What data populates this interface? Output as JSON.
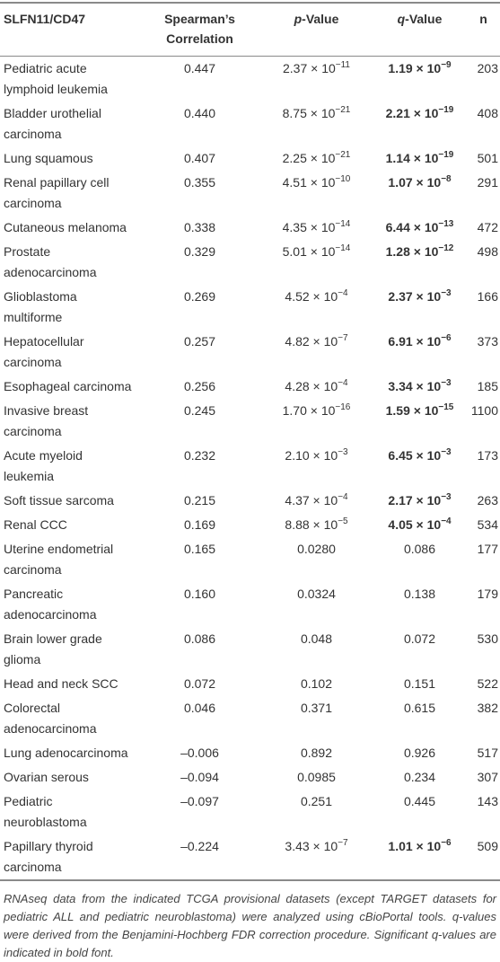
{
  "table": {
    "header": [
      "SLFN11/CD47",
      "Spearman’s Correlation",
      [
        "p",
        "-Value"
      ],
      [
        "q",
        "-Value"
      ],
      "n"
    ],
    "rows": [
      {
        "name": "Pediatric acute lymphoid leukemia",
        "correlation": "0.447",
        "p": [
          "2.37 × 10",
          "−11"
        ],
        "q": [
          "1.19 × 10",
          "−9"
        ],
        "n": 203,
        "q_bold": true
      },
      {
        "name": "Bladder urothelial carcinoma",
        "correlation": "0.440",
        "p": [
          "8.75 × 10",
          "−21"
        ],
        "q": [
          "2.21 × 10",
          "−19"
        ],
        "n": 408,
        "q_bold": true
      },
      {
        "name": "Lung squamous",
        "correlation": "0.407",
        "p": [
          "2.25 × 10",
          "−21"
        ],
        "q": [
          "1.14 × 10",
          "−19"
        ],
        "n": 501,
        "q_bold": true
      },
      {
        "name": "Renal papillary cell carcinoma",
        "correlation": "0.355",
        "p": [
          "4.51 × 10",
          "−10"
        ],
        "q": [
          "1.07 × 10",
          "−8"
        ],
        "n": 291,
        "q_bold": true
      },
      {
        "name": "Cutaneous melanoma",
        "correlation": "0.338",
        "p": [
          "4.35 × 10",
          "−14"
        ],
        "q": [
          "6.44 × 10",
          "−13"
        ],
        "n": 472,
        "q_bold": true
      },
      {
        "name": "Prostate adenocarcinoma",
        "correlation": "0.329",
        "p": [
          "5.01 × 10",
          "−14"
        ],
        "q": [
          "1.28 × 10",
          "−12"
        ],
        "n": 498,
        "q_bold": true
      },
      {
        "name": "Glioblastoma multiforme",
        "correlation": "0.269",
        "p": [
          "4.52 × 10",
          "−4"
        ],
        "q": [
          "2.37 × 10",
          "−3"
        ],
        "n": 166,
        "q_bold": true
      },
      {
        "name": "Hepatocellular carcinoma",
        "correlation": "0.257",
        "p": [
          "4.82 × 10",
          "−7"
        ],
        "q": [
          "6.91 × 10",
          "−6"
        ],
        "n": 373,
        "q_bold": true
      },
      {
        "name": "Esophageal carcinoma",
        "correlation": "0.256",
        "p": [
          "4.28 × 10",
          "−4"
        ],
        "q": [
          "3.34 × 10",
          "−3"
        ],
        "n": 185,
        "q_bold": true
      },
      {
        "name": "Invasive breast carcinoma",
        "correlation": "0.245",
        "p": [
          "1.70 × 10",
          "−16"
        ],
        "q": [
          "1.59 × 10",
          "−15"
        ],
        "n": 1100,
        "q_bold": true
      },
      {
        "name": "Acute myeloid leukemia",
        "correlation": "0.232",
        "p": [
          "2.10 × 10",
          "−3"
        ],
        "q": [
          "6.45 × 10",
          "−3"
        ],
        "n": 173,
        "q_bold": true
      },
      {
        "name": "Soft tissue sarcoma",
        "correlation": "0.215",
        "p": [
          "4.37 × 10",
          "−4"
        ],
        "q": [
          "2.17 × 10",
          "−3"
        ],
        "n": 263,
        "q_bold": true
      },
      {
        "name": "Renal CCC",
        "correlation": "0.169",
        "p": [
          "8.88 × 10",
          "−5"
        ],
        "q": [
          "4.05 × 10",
          "−4"
        ],
        "n": 534,
        "q_bold": true
      },
      {
        "name": "Uterine endometrial carcinoma",
        "correlation": "0.165",
        "p": "0.0280",
        "q": "0.086",
        "n": 177,
        "q_bold": false
      },
      {
        "name": "Pancreatic adenocarcinoma",
        "correlation": "0.160",
        "p": "0.0324",
        "q": "0.138",
        "n": 179,
        "q_bold": false
      },
      {
        "name": "Brain lower grade glioma",
        "correlation": "0.086",
        "p": "0.048",
        "q": "0.072",
        "n": 530,
        "q_bold": false
      },
      {
        "name": "Head and neck SCC",
        "correlation": "0.072",
        "p": "0.102",
        "q": "0.151",
        "n": 522,
        "q_bold": false
      },
      {
        "name": "Colorectal adenocarcinoma",
        "correlation": "0.046",
        "p": "0.371",
        "q": "0.615",
        "n": 382,
        "q_bold": false
      },
      {
        "name": "Lung adenocarcinoma",
        "correlation": "–0.006",
        "p": "0.892",
        "q": "0.926",
        "n": 517,
        "q_bold": false
      },
      {
        "name": "Ovarian serous",
        "correlation": "–0.094",
        "p": "0.0985",
        "q": "0.234",
        "n": 307,
        "q_bold": false
      },
      {
        "name": "Pediatric neuroblastoma",
        "correlation": "–0.097",
        "p": "0.251",
        "q": "0.445",
        "n": 143,
        "q_bold": false
      },
      {
        "name": "Papillary thyroid carcinoma",
        "correlation": "–0.224",
        "p": [
          "3.43 × 10",
          "−7"
        ],
        "q": [
          "1.01 × 10",
          "−6"
        ],
        "n": 509,
        "q_bold": true
      }
    ],
    "note": "RNAseq data from the indicated TCGA provisional datasets (except TARGET datasets for pediatric ALL and pediatric neuroblastoma) were analyzed using cBioPortal tools. q-values were derived from the Benjamini-Hochberg FDR correction procedure. Significant q-values are indicated in bold font."
  }
}
